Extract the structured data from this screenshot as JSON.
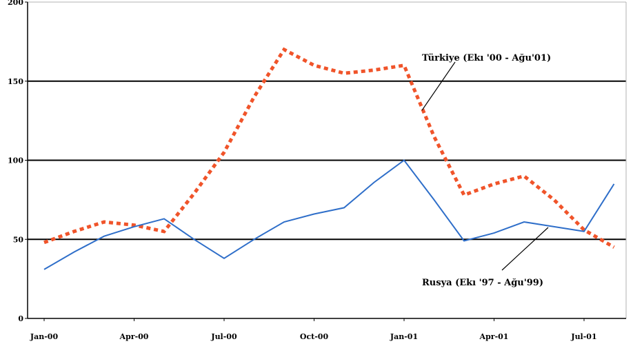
{
  "chart_data": {
    "type": "line",
    "title": "",
    "xlabel": "",
    "ylabel": "",
    "ylim": [
      0,
      200
    ],
    "yticks": [
      0,
      50,
      100,
      150,
      200
    ],
    "ytick_labels": [
      "0",
      "50",
      "100",
      "150",
      "200"
    ],
    "grid": "horizontal",
    "categories": [
      "Jan-00",
      "Feb-00",
      "Mar-00",
      "Apr-00",
      "May-00",
      "Jun-00",
      "Jul-00",
      "Aug-00",
      "Sep-00",
      "Oct-00",
      "Nov-00",
      "Dec-00",
      "Jan-01",
      "Feb-01",
      "Mar-01",
      "Apr-01",
      "May-01",
      "Jun-01",
      "Jul-01",
      "Aug-01"
    ],
    "xtick_labels": [
      "Jan-00",
      "Apr-00",
      "Jul-00",
      "Oct-00",
      "Jan-01",
      "Apr-01",
      "Jul-01"
    ],
    "series": [
      {
        "key": "turkey",
        "color": "#f0542a",
        "style": "dotted",
        "x_start_index": 0,
        "values": [
          48,
          55,
          61,
          59,
          55,
          79,
          105,
          140,
          170,
          160,
          155,
          157,
          160,
          115,
          78,
          85,
          90,
          75,
          56,
          45
        ]
      },
      {
        "key": "russia",
        "color": "#2e6ec9",
        "style": "solid",
        "x_start_index": 0,
        "values": [
          31,
          42,
          52,
          58,
          63,
          50,
          38,
          50,
          61,
          66,
          70,
          86,
          100,
          75,
          49,
          54,
          61,
          58,
          55,
          85
        ]
      }
    ],
    "annotations": [
      {
        "key": "turkey",
        "text": "Türkiye (Ekı '00 - Ağu'01)"
      },
      {
        "key": "russia",
        "text": "Rusya (Ekı '97 - Ağu'99)"
      }
    ]
  }
}
